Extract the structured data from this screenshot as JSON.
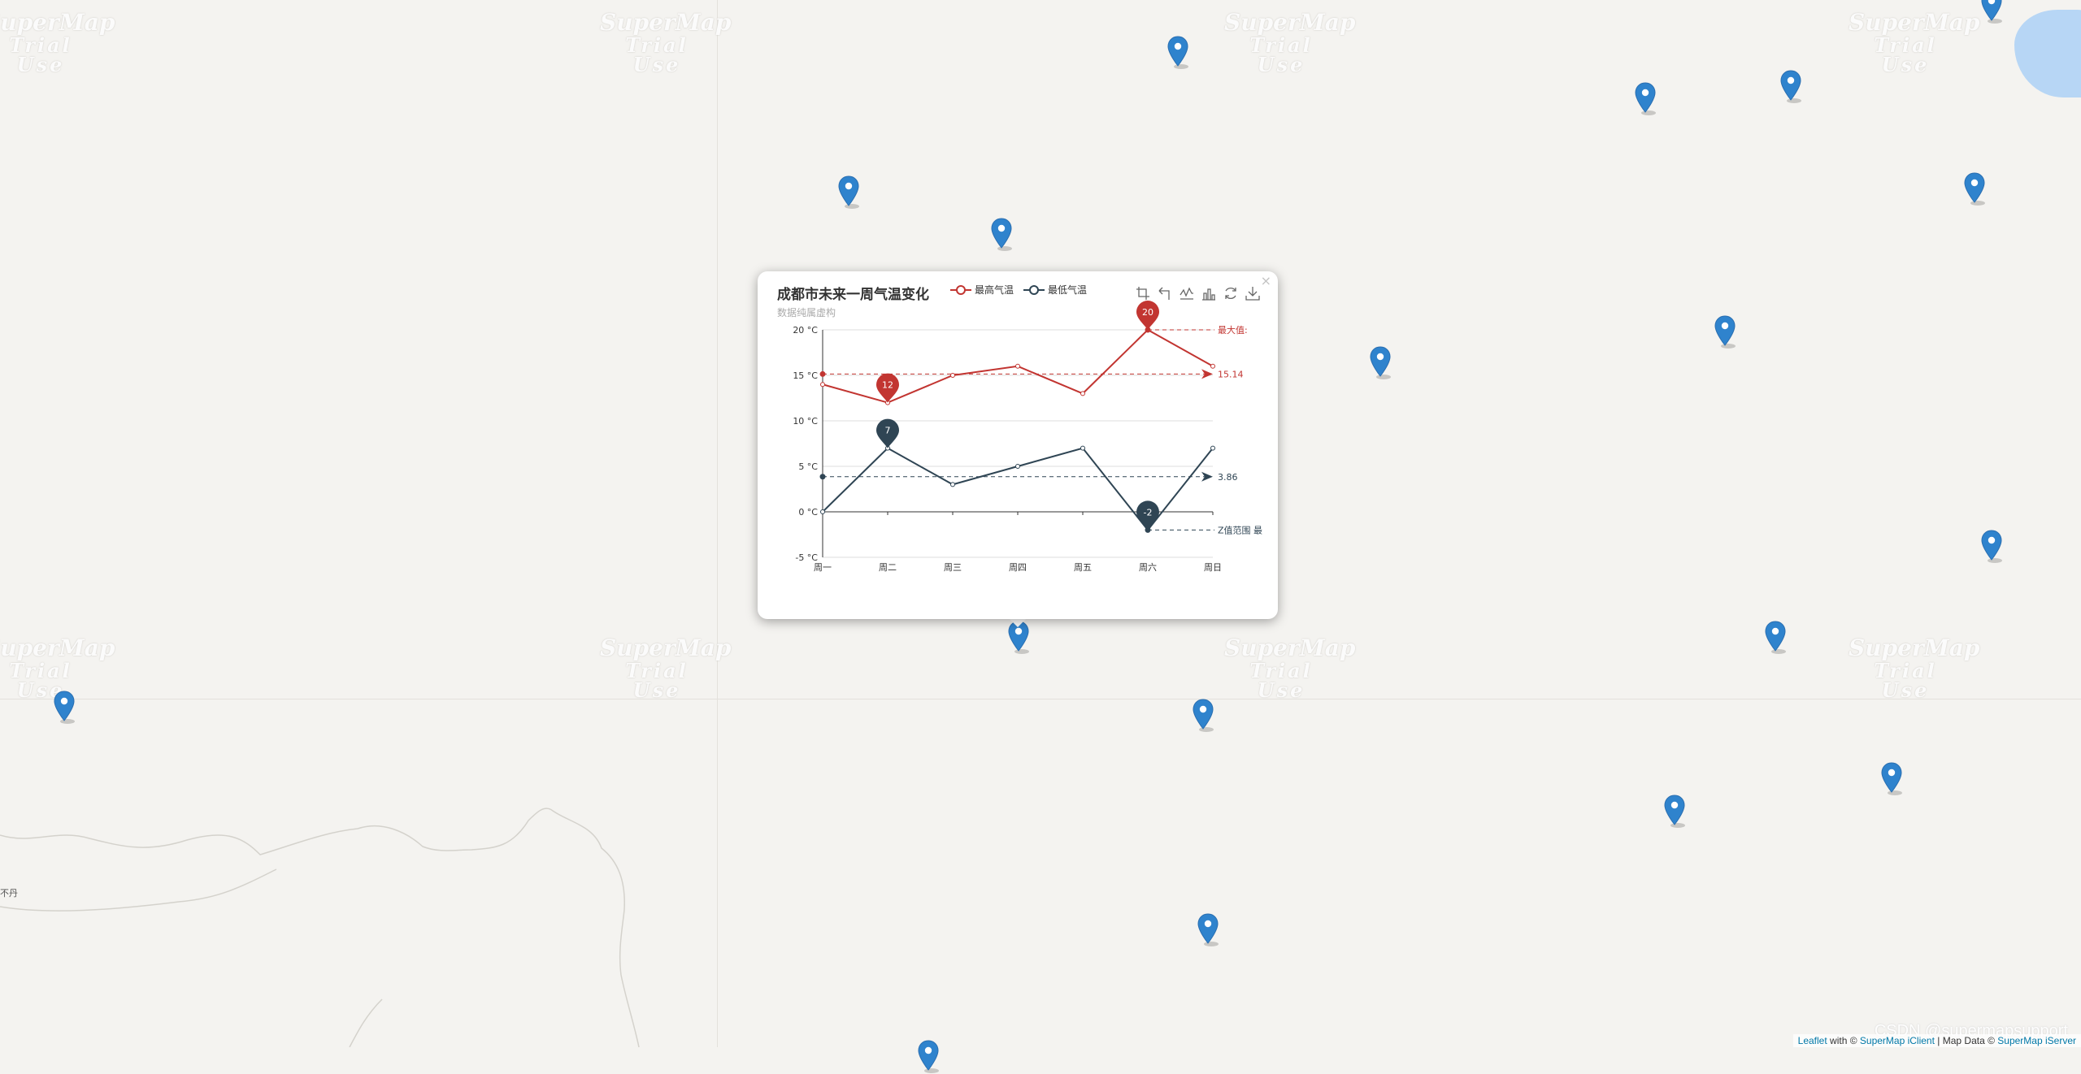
{
  "map": {
    "watermark": {
      "line1": "SuperMap",
      "line2": "Trial Use"
    },
    "place_label": "不丹",
    "marker_count": 18,
    "lake_color": "#b7d6f5",
    "marker_color": "#2f83cd"
  },
  "popup": {
    "close_label": "×",
    "title": "成都市未来一周气温变化",
    "subtitle": "数据纯属虚构",
    "legend": [
      {
        "name": "最高气温",
        "color": "#c23531"
      },
      {
        "name": "最低气温",
        "color": "#2f4554"
      }
    ],
    "toolbox_icons": [
      "zoom-icon",
      "zoom-reset-icon",
      "line-chart-icon",
      "bar-chart-icon",
      "restore-icon",
      "save-image-icon"
    ]
  },
  "chart_data": {
    "type": "line",
    "title": "成都市未来一周气温变化",
    "subtitle": "数据纯属虚构",
    "categories": [
      "周一",
      "周二",
      "周三",
      "周四",
      "周五",
      "周六",
      "周日"
    ],
    "y_axis_format": "{value} °C",
    "ylim": [
      -5,
      20
    ],
    "yticks": [
      -5,
      0,
      5,
      10,
      15,
      20
    ],
    "grid": true,
    "legend_position": "top",
    "series": [
      {
        "name": "最高气温",
        "color": "#c23531",
        "values": [
          14,
          12,
          15,
          16,
          13,
          20,
          16
        ],
        "mark_points": [
          {
            "category": "周六",
            "value": 20,
            "label": "20"
          },
          {
            "category": "周二",
            "value": 12,
            "label": "12"
          }
        ],
        "mark_line_average": {
          "value": 15.14,
          "label": "15.14"
        },
        "mark_line_max_label": "最大值:"
      },
      {
        "name": "最低气温",
        "color": "#2f4554",
        "values": [
          0,
          7,
          3,
          5,
          7,
          -2,
          7
        ],
        "mark_points": [
          {
            "category": "周二",
            "value": 7,
            "label": "7"
          },
          {
            "category": "周六",
            "value": -2,
            "label": "-2"
          }
        ],
        "mark_line_average": {
          "value": 3.86,
          "label": "3.86"
        },
        "mark_line_range_label": "Z值范围 最"
      }
    ]
  },
  "attribution": {
    "leaflet": "Leaflet",
    "with_text": "with ©",
    "iclient": "SuperMap iClient",
    "map_data_text": "| Map Data ©",
    "iserver": "SuperMap iServer"
  },
  "footer_watermark": "CSDN @supermapsupport"
}
